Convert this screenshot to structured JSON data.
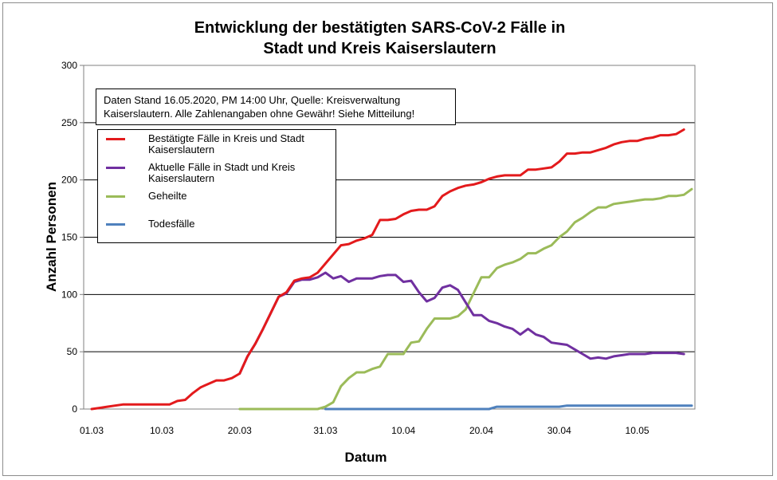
{
  "chart_data": {
    "type": "line",
    "title_line1": "Entwicklung der bestätigten SARS-CoV-2 Fälle in",
    "title_line2": "Stadt und Kreis Kaiserslautern",
    "xlabel": "Datum",
    "ylabel": "Anzahl Personen",
    "ylim": [
      0,
      300
    ],
    "yticks": [
      0,
      50,
      100,
      150,
      200,
      250,
      300
    ],
    "xlim": [
      0,
      77
    ],
    "xticks": [
      {
        "label": "01.03",
        "x": 0
      },
      {
        "label": "10.03",
        "x": 9
      },
      {
        "label": "20.03",
        "x": 19
      },
      {
        "label": "31.03",
        "x": 30
      },
      {
        "label": "10.04",
        "x": 40
      },
      {
        "label": "20.04",
        "x": 50
      },
      {
        "label": "30.04",
        "x": 60
      },
      {
        "label": "10.05",
        "x": 70
      }
    ],
    "grid": true,
    "note": "Daten Stand 16.05.2020, PM 14:00 Uhr, Quelle: Kreisverwaltung Kaiserslautern. Alle Zahlenangaben ohne Gewähr! Siehe Mitteilung!",
    "legend_position": "top-left",
    "series": [
      {
        "name": "Bestätigte Fälle in Kreis und Stadt Kaiserslautern",
        "color": "#e31a1c",
        "x_start": 0,
        "values": [
          0,
          1,
          2,
          3,
          4,
          4,
          4,
          4,
          4,
          4,
          4,
          7,
          8,
          14,
          19,
          22,
          25,
          25,
          27,
          31,
          46,
          57,
          70,
          84,
          98,
          102,
          112,
          114,
          115,
          119,
          127,
          135,
          143,
          144,
          147,
          149,
          152,
          165,
          165,
          166,
          170,
          173,
          174,
          174,
          177,
          186,
          190,
          193,
          195,
          196,
          198,
          201,
          203,
          204,
          204,
          204,
          209,
          209,
          210,
          211,
          216,
          223,
          223,
          224,
          224,
          226,
          228,
          231,
          233,
          234,
          234,
          236,
          237,
          239,
          239,
          240,
          244
        ]
      },
      {
        "name": "Aktuelle Fälle in Stadt und Kreis Kaiserslautern",
        "color": "#7030a0",
        "x_start": 19,
        "values": [
          31,
          46,
          57,
          70,
          84,
          98,
          101,
          111,
          113,
          113,
          115,
          119,
          114,
          116,
          111,
          114,
          114,
          114,
          116,
          117,
          117,
          111,
          112,
          102,
          94,
          97,
          106,
          108,
          104,
          93,
          82,
          82,
          77,
          75,
          72,
          70,
          65,
          70,
          65,
          63,
          58,
          57,
          56,
          52,
          48,
          44,
          45,
          44,
          46,
          47,
          48,
          48,
          48,
          49,
          49,
          49,
          49,
          48
        ]
      },
      {
        "name": "Geheilte",
        "color": "#9bbb59",
        "x_start": 19,
        "values": [
          0,
          0,
          0,
          0,
          0,
          0,
          0,
          0,
          0,
          0,
          0,
          2,
          6,
          20,
          27,
          32,
          32,
          35,
          37,
          48,
          48,
          48,
          58,
          59,
          70,
          79,
          79,
          79,
          81,
          87,
          101,
          115,
          115,
          123,
          126,
          128,
          131,
          136,
          136,
          140,
          143,
          150,
          155,
          163,
          167,
          172,
          176,
          176,
          179,
          180,
          181,
          182,
          183,
          183,
          184,
          186,
          186,
          187,
          192
        ]
      },
      {
        "name": "Todesfälle",
        "color": "#4f81bd",
        "x_start": 30,
        "values": [
          0,
          0,
          0,
          0,
          0,
          0,
          0,
          0,
          0,
          0,
          0,
          0,
          0,
          0,
          0,
          0,
          0,
          0,
          0,
          0,
          0,
          0,
          2,
          2,
          2,
          2,
          2,
          2,
          2,
          2,
          2,
          3,
          3,
          3,
          3,
          3,
          3,
          3,
          3,
          3,
          3,
          3,
          3,
          3,
          3,
          3,
          3,
          3
        ]
      }
    ]
  }
}
